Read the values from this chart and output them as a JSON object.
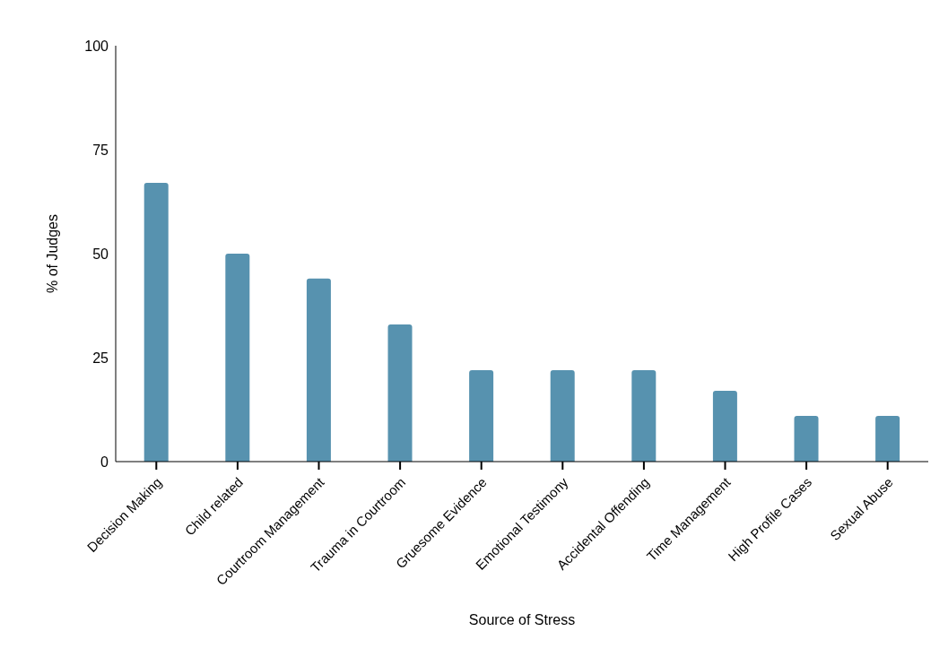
{
  "chart_data": {
    "type": "bar",
    "xlabel": "Source of Stress",
    "ylabel": "% of Judges",
    "categories": [
      "Decision Making",
      "Child related",
      "Courtroom Management",
      "Trauma in Courtroom",
      "Gruesome Evidence",
      "Emotional Testimony",
      "Accidental Offending",
      "Time Management",
      "High Profile Cases",
      "Sexual Abuse"
    ],
    "values": [
      67,
      50,
      44,
      33,
      22,
      22,
      22,
      17,
      11,
      11
    ],
    "color": "#5792af",
    "ylim": [
      0,
      100
    ],
    "yticks": [
      0,
      25,
      50,
      75,
      100
    ],
    "grid": false,
    "legend": false
  }
}
